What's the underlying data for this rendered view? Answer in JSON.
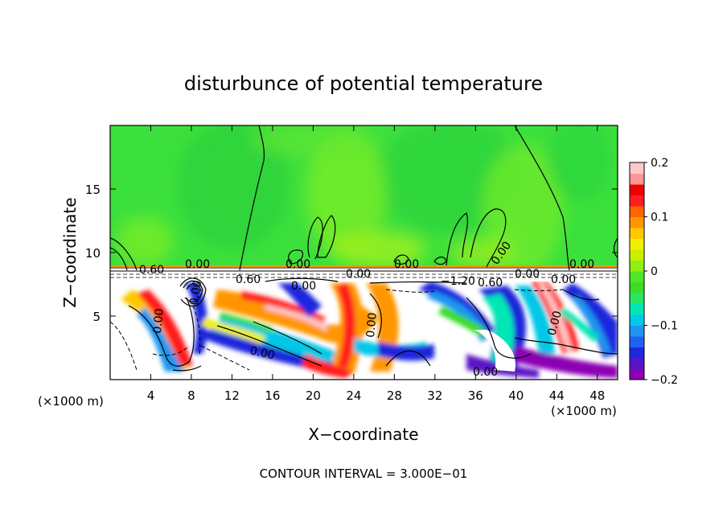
{
  "chart_data": {
    "type": "heatmap",
    "title": "disturbunce of potential temperature",
    "xlabel": "X−coordinate",
    "ylabel": "Z−coordinate",
    "x_unit": "(×1000 m)",
    "x_unit_right": "(×1000 m)",
    "xlim": [
      0,
      50
    ],
    "ylim": [
      0,
      20
    ],
    "x_ticks": [
      4,
      8,
      12,
      16,
      20,
      24,
      28,
      32,
      36,
      40,
      44,
      48
    ],
    "y_ticks": [
      5,
      10,
      15
    ],
    "colorbar": {
      "min": -0.2,
      "max": 0.2,
      "tick_values": [
        0.2,
        0.1,
        0,
        -0.1,
        -0.2
      ],
      "tick_labels": [
        "0.2",
        "0.1",
        "0",
        "−0.1",
        "−0.2"
      ],
      "colors": [
        "#8c00b4",
        "#5a14c8",
        "#1e28dc",
        "#1e64f0",
        "#1e96f0",
        "#00c8e6",
        "#00e6b4",
        "#28e664",
        "#3cdc28",
        "#50e628",
        "#8cf014",
        "#c8f000",
        "#f0f000",
        "#ffc800",
        "#ff9600",
        "#ff6400",
        "#ff1e1e",
        "#f00000",
        "#ff9696",
        "#ffc8c8"
      ]
    },
    "contour_labels": [
      "0.60",
      "0.00",
      "0.60",
      "0.00",
      "0.00",
      "0.00",
      "0.00",
      "0.00",
      "0.00",
      "0.00",
      "0.00",
      "0.00",
      "−1.20",
      "0.60",
      "0.00",
      "0.00",
      "0.00",
      "0.00",
      "0.00"
    ],
    "annotation": "CONTOUR INTERVAL = 3.000E−01"
  }
}
